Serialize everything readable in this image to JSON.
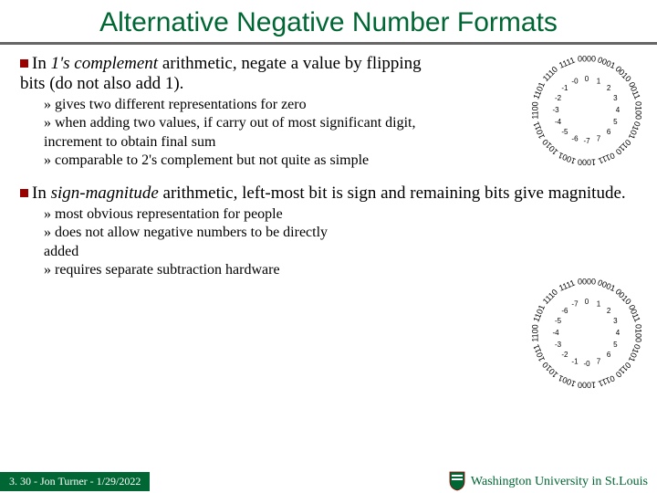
{
  "title": "Alternative Negative Number Formats",
  "section1": {
    "lead_emph": "1's complement",
    "lead_rest": " arithmetic, negate a value by flipping bits (do not also add 1).",
    "subs": [
      "gives two different representations for zero",
      "when adding two values, if carry out of most significant digit, increment to obtain final sum",
      "comparable to 2's complement but not quite as simple"
    ]
  },
  "section2": {
    "lead_emph": "sign-magnitude",
    "lead_rest": " arithmetic, left-most bit is sign and remaining bits give magnitude.",
    "subs": [
      "most obvious representation for people",
      "does not allow negative numbers to be directly added",
      "requires separate subtraction hardware"
    ]
  },
  "wheel_outer": [
    "0000",
    "0001",
    "0010",
    "0011",
    "0100",
    "0101",
    "0110",
    "0111",
    "1000",
    "1001",
    "1010",
    "1011",
    "1100",
    "1101",
    "1110",
    "1111"
  ],
  "wheel1_inner": [
    "0",
    "1",
    "2",
    "3",
    "4",
    "5",
    "6",
    "7",
    "-7",
    "-6",
    "-5",
    "-4",
    "-3",
    "-2",
    "-1",
    "-0"
  ],
  "wheel2_inner": [
    "0",
    "1",
    "2",
    "3",
    "4",
    "5",
    "6",
    "7",
    "-0",
    "-1",
    "-2",
    "-3",
    "-4",
    "-5",
    "-6",
    "-7"
  ],
  "footer": {
    "left": "3. 30 - Jon Turner - 1/29/2022",
    "uni": "Washington University in St.Louis"
  },
  "colors": {
    "accent_green": "#006633",
    "accent_red": "#990000",
    "divider": "#666666"
  }
}
